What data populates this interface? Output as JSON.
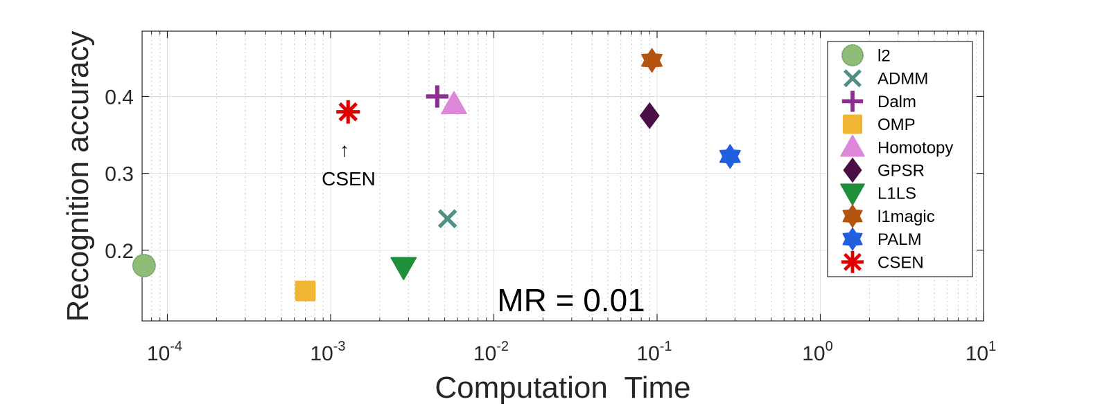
{
  "chart_data": {
    "type": "scatter",
    "xscale": "log",
    "xlim": [
      7e-05,
      10
    ],
    "ylim": [
      0.108,
      0.485
    ],
    "xticks": [
      {
        "base": "10",
        "exp": "-4",
        "value": 0.0001
      },
      {
        "base": "10",
        "exp": "-3",
        "value": 0.001
      },
      {
        "base": "10",
        "exp": "-2",
        "value": 0.01
      },
      {
        "base": "10",
        "exp": "-1",
        "value": 0.1
      },
      {
        "base": "10",
        "exp": "0",
        "value": 1
      },
      {
        "base": "10",
        "exp": "1",
        "value": 10
      }
    ],
    "yticks": [
      {
        "label": "0.2",
        "value": 0.2
      },
      {
        "label": "0.3",
        "value": 0.3
      },
      {
        "label": "0.4",
        "value": 0.4
      }
    ],
    "xlabel": "Computation  Time",
    "ylabel": "Recognition accuracy",
    "grid": true,
    "legend_position": "top-right",
    "annotation_text": "MR = 0.01",
    "callout": {
      "text": "CSEN",
      "arrow": "↑"
    },
    "series": [
      {
        "name": "l2",
        "x": 7.2e-05,
        "y": 0.18,
        "marker": "circle",
        "color": "#8fbc78"
      },
      {
        "name": "ADMM",
        "x": 0.0052,
        "y": 0.241,
        "marker": "x",
        "color": "#4f8f85"
      },
      {
        "name": "Dalm",
        "x": 0.0045,
        "y": 0.4,
        "marker": "plus",
        "color": "#8c2d91"
      },
      {
        "name": "OMP",
        "x": 0.0007,
        "y": 0.147,
        "marker": "square",
        "color": "#f0b534"
      },
      {
        "name": "Homotopy",
        "x": 0.0057,
        "y": 0.39,
        "marker": "triangle-up",
        "color": "#dd88d8"
      },
      {
        "name": "GPSR",
        "x": 0.09,
        "y": 0.375,
        "marker": "diamond",
        "color": "#4a0d45"
      },
      {
        "name": "L1LS",
        "x": 0.0028,
        "y": 0.178,
        "marker": "triangle-down",
        "color": "#1f8f3a"
      },
      {
        "name": "l1magic",
        "x": 0.093,
        "y": 0.447,
        "marker": "hexagram",
        "color": "#b35410"
      },
      {
        "name": "PALM",
        "x": 0.28,
        "y": 0.322,
        "marker": "hexagram",
        "color": "#1f5fe0"
      },
      {
        "name": "CSEN",
        "x": 0.00128,
        "y": 0.38,
        "marker": "asterisk",
        "color": "#e00000"
      }
    ]
  }
}
